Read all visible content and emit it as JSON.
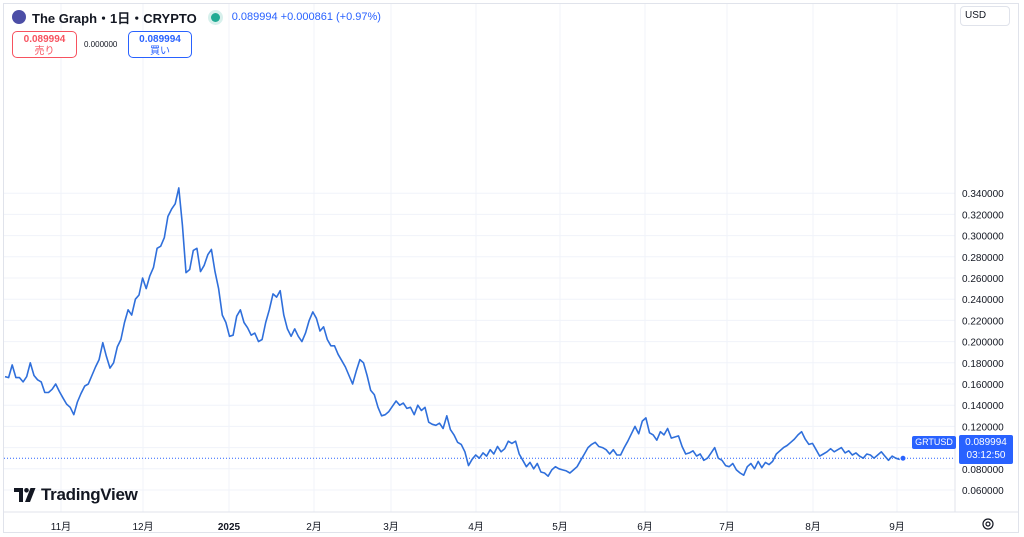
{
  "header": {
    "title": "The Graph・1日・CRYPTO",
    "price_line": "0.089994  +0.000861 (+0.97%)",
    "icon": "grt-token-icon"
  },
  "trade": {
    "sell_price": "0.089994",
    "sell_label": "売り",
    "spread": "0.000000",
    "buy_price": "0.089994",
    "buy_label": "買い"
  },
  "currency_button": "USD",
  "last_price": {
    "symbol": "GRTUSD",
    "price": "0.089994",
    "countdown": "03:12:50"
  },
  "logo": {
    "text": "TradingView"
  },
  "colors": {
    "line": "#2f6fdb",
    "accent": "#2962ff",
    "sell": "#f7525f",
    "live": "#22ab94"
  },
  "chart_data": {
    "type": "line",
    "series": [
      {
        "values": [
          0.167,
          0.166,
          0.178,
          0.166,
          0.166,
          0.162,
          0.167,
          0.18,
          0.168,
          0.164,
          0.162,
          0.152,
          0.152,
          0.155,
          0.16,
          0.153,
          0.147,
          0.141,
          0.138,
          0.131,
          0.143,
          0.151,
          0.158,
          0.16,
          0.168,
          0.176,
          0.183,
          0.199,
          0.186,
          0.175,
          0.18,
          0.195,
          0.202,
          0.218,
          0.23,
          0.225,
          0.24,
          0.244,
          0.26,
          0.25,
          0.262,
          0.27,
          0.288,
          0.29,
          0.298,
          0.318,
          0.325,
          0.33,
          0.345,
          0.31,
          0.265,
          0.268,
          0.286,
          0.288,
          0.266,
          0.272,
          0.282,
          0.287,
          0.266,
          0.25,
          0.225,
          0.218,
          0.205,
          0.206,
          0.224,
          0.23,
          0.218,
          0.213,
          0.206,
          0.208,
          0.2,
          0.202,
          0.218,
          0.23,
          0.245,
          0.242,
          0.248,
          0.225,
          0.212,
          0.205,
          0.212,
          0.205,
          0.2,
          0.208,
          0.22,
          0.228,
          0.222,
          0.21,
          0.214,
          0.202,
          0.196,
          0.196,
          0.188,
          0.182,
          0.176,
          0.168,
          0.16,
          0.172,
          0.183,
          0.18,
          0.168,
          0.154,
          0.15,
          0.138,
          0.13,
          0.131,
          0.134,
          0.139,
          0.144,
          0.14,
          0.142,
          0.137,
          0.138,
          0.131,
          0.14,
          0.135,
          0.138,
          0.124,
          0.122,
          0.121,
          0.123,
          0.118,
          0.13,
          0.117,
          0.112,
          0.105,
          0.103,
          0.096,
          0.083,
          0.089,
          0.093,
          0.09,
          0.095,
          0.092,
          0.098,
          0.094,
          0.101,
          0.096,
          0.099,
          0.106,
          0.104,
          0.106,
          0.094,
          0.088,
          0.082,
          0.086,
          0.08,
          0.085,
          0.077,
          0.076,
          0.073,
          0.079,
          0.082,
          0.08,
          0.079,
          0.078,
          0.076,
          0.079,
          0.082,
          0.088,
          0.094,
          0.1,
          0.103,
          0.105,
          0.101,
          0.1,
          0.098,
          0.094,
          0.098,
          0.093,
          0.093,
          0.1,
          0.106,
          0.113,
          0.12,
          0.113,
          0.125,
          0.128,
          0.114,
          0.112,
          0.107,
          0.115,
          0.112,
          0.118,
          0.109,
          0.11,
          0.111,
          0.101,
          0.094,
          0.095,
          0.097,
          0.092,
          0.094,
          0.088,
          0.09,
          0.095,
          0.1,
          0.09,
          0.088,
          0.083,
          0.082,
          0.085,
          0.079,
          0.076,
          0.074,
          0.082,
          0.085,
          0.08,
          0.087,
          0.081,
          0.086,
          0.084,
          0.087,
          0.094,
          0.097,
          0.1,
          0.102,
          0.105,
          0.108,
          0.112,
          0.115,
          0.108,
          0.103,
          0.104,
          0.098,
          0.092,
          0.094,
          0.096,
          0.099,
          0.096,
          0.098,
          0.1,
          0.095,
          0.097,
          0.093,
          0.095,
          0.092,
          0.09,
          0.094,
          0.093,
          0.09,
          0.093,
          0.096,
          0.092,
          0.088,
          0.092,
          0.09,
          0.089,
          0.09
        ],
        "color": "#2f6fdb"
      }
    ],
    "x_tick_labels": [
      "11月",
      "12月",
      "2025",
      "2月",
      "3月",
      "4月",
      "5月",
      "6月",
      "7月",
      "8月",
      "9月"
    ],
    "y_tick_labels": [
      "0.060000",
      "0.080000",
      "0.100000",
      "0.120000",
      "0.140000",
      "0.160000",
      "0.180000",
      "0.200000",
      "0.220000",
      "0.240000",
      "0.260000",
      "0.280000",
      "0.300000",
      "0.320000",
      "0.340000"
    ],
    "ylim": [
      0.055,
      0.352
    ],
    "last_value": 0.089994,
    "grid": true
  }
}
